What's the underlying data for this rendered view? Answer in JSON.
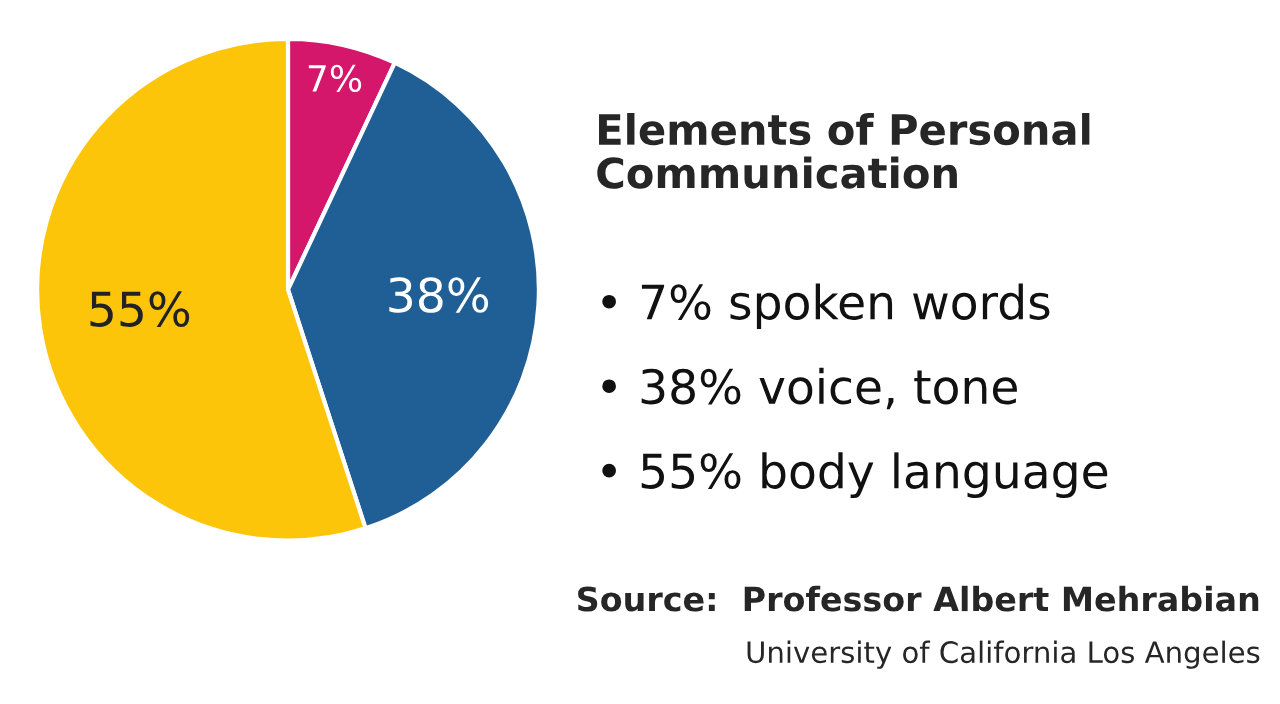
{
  "chart_data": {
    "type": "pie",
    "title": "Elements of Personal\nCommunication",
    "categories": [
      null,
      null,
      null
    ],
    "values": [
      7,
      38,
      55
    ],
    "colors": [
      "#d5176c",
      "#1f5f95",
      "#fcc50a"
    ],
    "value_labels": [
      "7%",
      "38%",
      "55%"
    ],
    "annotations": [
      "• 7% spoken words",
      "• 38% voice, tone",
      "• 55% body language",
      "Source:  Professor Albert Mehrabian",
      "University of California Los Angeles"
    ],
    "legend": false
  }
}
